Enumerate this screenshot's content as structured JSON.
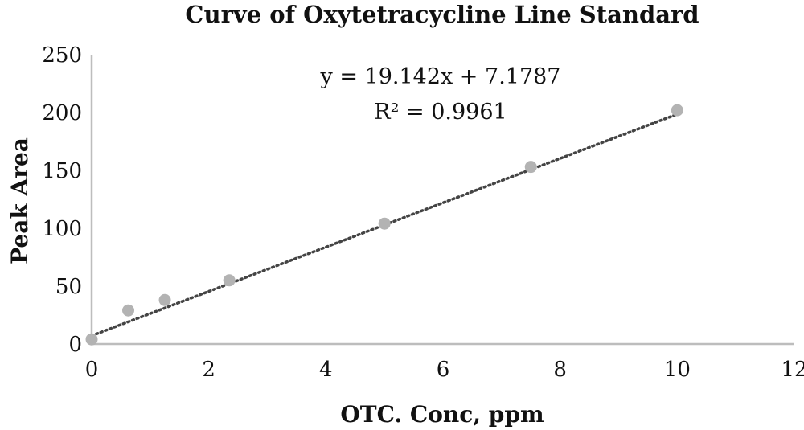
{
  "chart_data": {
    "type": "scatter",
    "title": "Curve of Oxytetracycline Line Standard",
    "xlabel": "OTC. Conc, ppm",
    "ylabel": "Peak Area",
    "xlim": [
      0,
      12
    ],
    "ylim": [
      0,
      250
    ],
    "x_ticks": [
      0,
      2,
      4,
      6,
      8,
      10,
      12
    ],
    "y_ticks": [
      0,
      50,
      100,
      150,
      200,
      250
    ],
    "grid": false,
    "legend": "none",
    "marker_color": "#b3b3b3",
    "trendline_color": "#444444",
    "points": [
      {
        "x": 0,
        "y": 4
      },
      {
        "x": 0.625,
        "y": 29
      },
      {
        "x": 1.25,
        "y": 38
      },
      {
        "x": 2.35,
        "y": 55
      },
      {
        "x": 5,
        "y": 104
      },
      {
        "x": 7.5,
        "y": 153
      },
      {
        "x": 10,
        "y": 202
      }
    ],
    "trendline": {
      "slope": 19.142,
      "intercept": 7.1787,
      "x_range": [
        0,
        10
      ],
      "equation": "y = 19.142x + 7.1787",
      "r_squared": "R² =  0.9961"
    }
  }
}
